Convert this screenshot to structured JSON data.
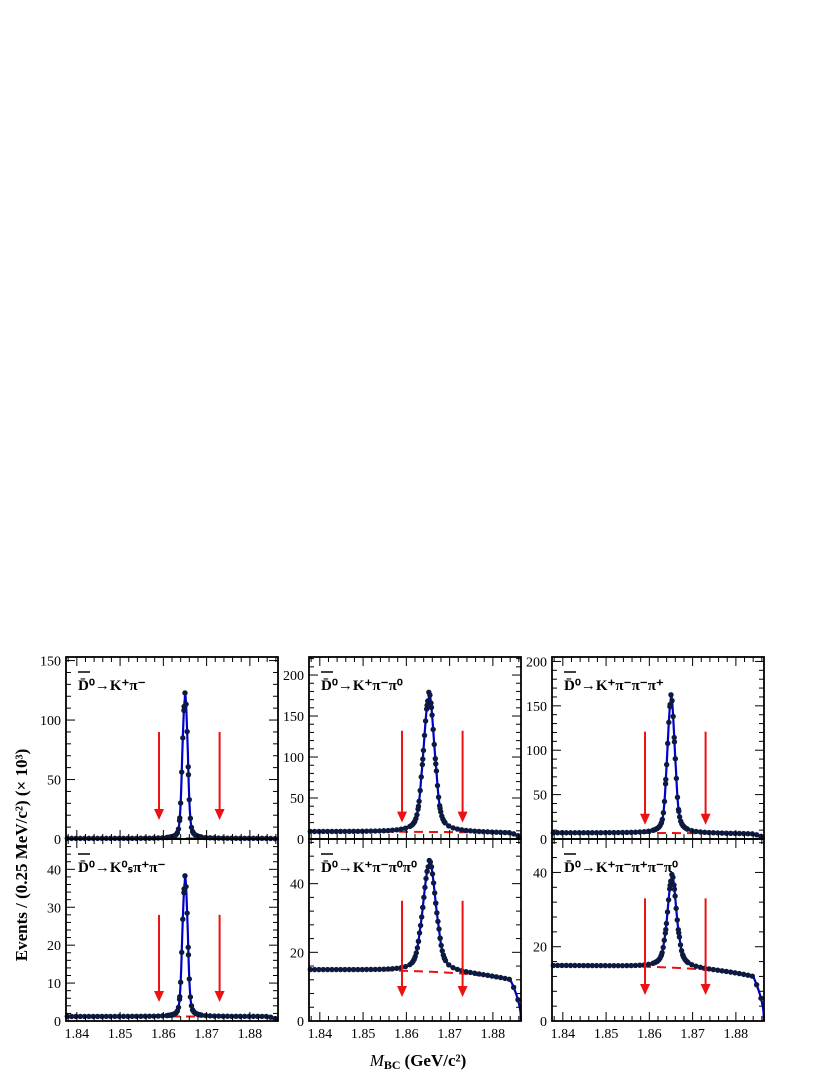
{
  "figure": {
    "ylabel": "Events / (0.25 MeV/c²) (× 10³)",
    "xlabel_main": "M",
    "xlabel_sub": "BC",
    "xlabel_units": "(GeV/c²)"
  },
  "colors": {
    "fit": "#0000cc",
    "background": "#ee1111",
    "data": "#0d1a40",
    "arrow": "#ee1111"
  },
  "chart_data": [
    {
      "type": "scatter",
      "panel": "top-left",
      "label_main": "D̄⁰→K⁺π⁻",
      "xlim": [
        1.8375,
        1.8865
      ],
      "ylim": [
        0,
        153
      ],
      "x_ticks": [
        "1.84",
        "1.85",
        "1.86",
        "1.87",
        "1.88"
      ],
      "y_ticks": [
        0,
        50,
        100,
        150
      ],
      "signal": {
        "mean": 1.865,
        "peak": 117,
        "width": 0.00055,
        "tail": 0.00045
      },
      "background": {
        "level": 0.5
      },
      "arrows_x": [
        1.859,
        1.873
      ],
      "arrow_top": 90,
      "arrow_bottom": 16
    },
    {
      "type": "scatter",
      "panel": "top-middle",
      "label_main": "D̄⁰→K⁺π⁻π⁰",
      "xlim": [
        1.8375,
        1.8865
      ],
      "ylim": [
        0,
        222
      ],
      "x_ticks": [
        "1.84",
        "1.85",
        "1.86",
        "1.87",
        "1.88"
      ],
      "y_ticks": [
        0,
        50,
        100,
        150,
        200
      ],
      "signal": {
        "mean": 1.8652,
        "peak": 163,
        "width": 0.0011,
        "tail": 0.0012
      },
      "background": {
        "level": 9
      },
      "arrows_x": [
        1.859,
        1.873
      ],
      "arrow_top": 132,
      "arrow_bottom": 20
    },
    {
      "type": "scatter",
      "panel": "top-right",
      "label_main": "D̄⁰→K⁺π⁻π⁻π⁺",
      "xlim": [
        1.8375,
        1.8865
      ],
      "ylim": [
        0,
        205
      ],
      "x_ticks": [
        "1.84",
        "1.85",
        "1.86",
        "1.87",
        "1.88"
      ],
      "y_ticks": [
        0,
        50,
        100,
        150,
        200
      ],
      "signal": {
        "mean": 1.865,
        "peak": 149,
        "width": 0.00075,
        "tail": 0.0008
      },
      "background": {
        "level": 7
      },
      "arrows_x": [
        1.859,
        1.873
      ],
      "arrow_top": 121,
      "arrow_bottom": 16
    },
    {
      "type": "scatter",
      "panel": "bottom-left",
      "label_main": "D̄⁰→K⁰ₛπ⁺π⁻",
      "xlim": [
        1.8375,
        1.8865
      ],
      "ylim": [
        0,
        48
      ],
      "x_ticks": [
        "1.84",
        "1.85",
        "1.86",
        "1.87",
        "1.88"
      ],
      "y_ticks": [
        0,
        10,
        20,
        30,
        40
      ],
      "signal": {
        "mean": 1.865,
        "peak": 35.5,
        "width": 0.00055,
        "tail": 0.00045
      },
      "background": {
        "level": 1.2
      },
      "arrows_x": [
        1.859,
        1.873
      ],
      "arrow_top": 28,
      "arrow_bottom": 5
    },
    {
      "type": "scatter",
      "panel": "bottom-middle",
      "label_main": "D̄⁰→K⁺π⁻π⁰π⁰",
      "xlim": [
        1.8375,
        1.8865
      ],
      "ylim": [
        0,
        53
      ],
      "x_ticks": [
        "1.84",
        "1.85",
        "1.86",
        "1.87",
        "1.88"
      ],
      "y_ticks": [
        0,
        20,
        40
      ],
      "signal": {
        "mean": 1.8653,
        "peak": 31,
        "width": 0.0013,
        "tail": 0.0015
      },
      "background": {
        "level": 15
      },
      "arrows_x": [
        1.859,
        1.873
      ],
      "arrow_top": 35,
      "arrow_bottom": 7
    },
    {
      "type": "scatter",
      "panel": "bottom-right",
      "label_main": "D̄⁰→K⁺π⁻π⁺π⁻π⁰",
      "xlim": [
        1.8375,
        1.8865
      ],
      "ylim": [
        0,
        49
      ],
      "x_ticks": [
        "1.84",
        "1.85",
        "1.86",
        "1.87",
        "1.88"
      ],
      "y_ticks": [
        0,
        20,
        40
      ],
      "signal": {
        "mean": 1.8652,
        "peak": 24,
        "width": 0.0009,
        "tail": 0.0012
      },
      "background": {
        "level": 15
      },
      "arrows_x": [
        1.859,
        1.873
      ],
      "arrow_top": 33,
      "arrow_bottom": 7
    }
  ]
}
